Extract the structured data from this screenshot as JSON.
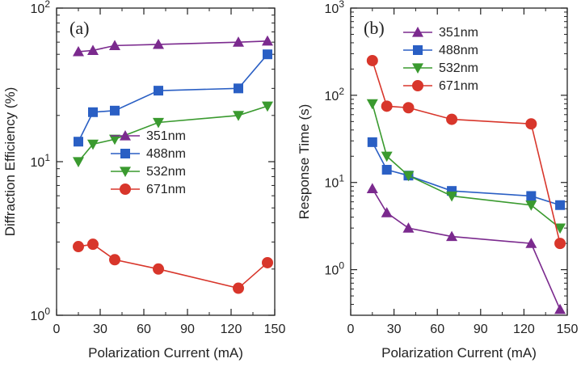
{
  "chart_data": [
    {
      "type": "line",
      "panel_label": "(a)",
      "xlabel": "Polarization Current (mA)",
      "ylabel": "Diffraction Efficiency (%)",
      "xlim": [
        0,
        150
      ],
      "ylim": [
        1,
        100
      ],
      "yscale": "log",
      "xticks": [
        "0",
        "30",
        "60",
        "90",
        "120",
        "150"
      ],
      "xtick_values": [
        0,
        30,
        60,
        90,
        120,
        150
      ],
      "yticks": [
        {
          "base": "10",
          "exp": "0",
          "value": 1
        },
        {
          "base": "10",
          "exp": "1",
          "value": 10
        },
        {
          "base": "10",
          "exp": "2",
          "value": 100
        }
      ],
      "legend_position": "center-right",
      "grid": false,
      "series": [
        {
          "name": "351nm",
          "color": "#7b2a8e",
          "marker": "triangle-up",
          "x": [
            15,
            25,
            40,
            70,
            125,
            145
          ],
          "y": [
            52,
            53,
            57,
            58,
            60,
            61
          ]
        },
        {
          "name": "488nm",
          "color": "#2a5fc4",
          "marker": "square",
          "x": [
            15,
            25,
            40,
            70,
            125,
            145
          ],
          "y": [
            13.5,
            21,
            21.5,
            29,
            30,
            50
          ]
        },
        {
          "name": "532nm",
          "color": "#3a9a2f",
          "marker": "triangle-down",
          "x": [
            15,
            25,
            40,
            70,
            125,
            145
          ],
          "y": [
            10,
            13,
            14,
            18,
            20,
            23
          ]
        },
        {
          "name": "671nm",
          "color": "#d8362b",
          "marker": "circle",
          "x": [
            15,
            25,
            40,
            70,
            125,
            145
          ],
          "y": [
            2.8,
            2.9,
            2.3,
            2.0,
            1.5,
            2.2
          ]
        }
      ]
    },
    {
      "type": "line",
      "panel_label": "(b)",
      "xlabel": "Polarization Current (mA)",
      "ylabel": "Response Time (s)",
      "xlim": [
        0,
        150
      ],
      "ylim": [
        0.3,
        1000
      ],
      "yscale": "log",
      "xticks": [
        "0",
        "30",
        "60",
        "90",
        "120",
        "150"
      ],
      "xtick_values": [
        0,
        30,
        60,
        90,
        120,
        150
      ],
      "yticks": [
        {
          "base": "10",
          "exp": "0",
          "value": 1
        },
        {
          "base": "10",
          "exp": "1",
          "value": 10
        },
        {
          "base": "10",
          "exp": "2",
          "value": 100
        },
        {
          "base": "10",
          "exp": "3",
          "value": 1000
        }
      ],
      "legend_position": "top-right",
      "grid": false,
      "series": [
        {
          "name": "351nm",
          "color": "#7b2a8e",
          "marker": "triangle-up",
          "x": [
            15,
            25,
            40,
            70,
            125,
            145
          ],
          "y": [
            8.5,
            4.5,
            3.0,
            2.4,
            2.0,
            0.35
          ]
        },
        {
          "name": "488nm",
          "color": "#2a5fc4",
          "marker": "square",
          "x": [
            15,
            25,
            40,
            70,
            125,
            145
          ],
          "y": [
            29,
            14,
            12,
            8,
            7,
            5.5
          ]
        },
        {
          "name": "532nm",
          "color": "#3a9a2f",
          "marker": "triangle-down",
          "x": [
            15,
            25,
            40,
            70,
            125,
            145
          ],
          "y": [
            80,
            20,
            12,
            7,
            5.5,
            3.0
          ]
        },
        {
          "name": "671nm",
          "color": "#d8362b",
          "marker": "circle",
          "x": [
            15,
            25,
            40,
            70,
            125,
            145
          ],
          "y": [
            250,
            75,
            72,
            53,
            47,
            2.0
          ]
        }
      ]
    }
  ]
}
